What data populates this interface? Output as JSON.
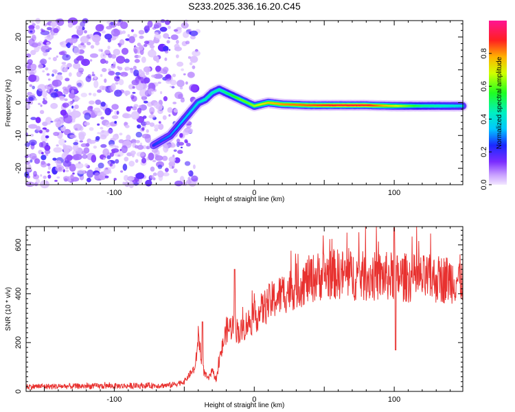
{
  "title": "S233.2025.336.16.20.C45",
  "chart_data": [
    {
      "type": "heatmap",
      "xlabel": "Height of straight line (km)",
      "ylabel": "Frequency (Hz)",
      "xlim": [
        -163,
        149
      ],
      "ylim": [
        -25,
        25
      ],
      "xticks": [
        -100,
        0,
        100
      ],
      "xtick_labels": [
        "-100",
        "0",
        "100"
      ],
      "yticks": [
        -20,
        -10,
        0,
        10,
        20
      ],
      "ytick_labels": [
        "-20",
        "-10",
        "0",
        "10",
        "20"
      ],
      "colorbar": {
        "label": "Normalized spectral amplitude",
        "range": [
          0,
          1
        ],
        "ticks": [
          0.0,
          0.2,
          0.4,
          0.6,
          0.8
        ],
        "tick_labels": [
          "0.0",
          "0.2",
          "0.4",
          "0.6",
          "0.8"
        ]
      },
      "ridge": {
        "x": [
          -72,
          -60,
          -50,
          -40,
          -35,
          -30,
          -25,
          -20,
          -15,
          -10,
          -5,
          0,
          5,
          10,
          20,
          40,
          60,
          80,
          90,
          100,
          120,
          149
        ],
        "y": [
          -13,
          -10,
          -5,
          0,
          1,
          3,
          4,
          3,
          2,
          1,
          0,
          -1,
          -0.5,
          0,
          -0.5,
          -0.8,
          -0.8,
          -0.8,
          -0.9,
          -1,
          -1,
          -1
        ],
        "amplitude": [
          0.25,
          0.3,
          0.35,
          0.4,
          0.45,
          0.45,
          0.45,
          0.5,
          0.55,
          0.6,
          0.6,
          0.65,
          0.7,
          0.75,
          0.8,
          0.85,
          0.9,
          0.9,
          0.8,
          0.7,
          0.5,
          0.4
        ]
      },
      "noise_region": {
        "x_from": -163,
        "x_to": -40
      }
    },
    {
      "type": "line",
      "xlabel": "Height of straight line (km)",
      "ylabel": "SNR (10 * v/v)",
      "xlim": [
        -163,
        149
      ],
      "ylim": [
        0,
        675
      ],
      "xticks": [
        -100,
        0,
        100
      ],
      "xtick_labels": [
        "-100",
        "0",
        "100"
      ],
      "yticks": [
        0,
        200,
        400,
        600
      ],
      "ytick_labels": [
        "0",
        "200",
        "400",
        "600"
      ],
      "color": "#e8312f",
      "envelope": {
        "x": [
          -163,
          -100,
          -60,
          -50,
          -42,
          -40,
          -38,
          -36,
          -33,
          -30,
          -27,
          -24,
          -20,
          -15,
          -10,
          -5,
          0,
          10,
          20,
          30,
          40,
          50,
          60,
          80,
          100,
          120,
          149
        ],
        "y": [
          20,
          22,
          25,
          40,
          100,
          230,
          150,
          80,
          50,
          80,
          50,
          150,
          250,
          270,
          240,
          280,
          300,
          360,
          400,
          430,
          460,
          480,
          480,
          470,
          470,
          460,
          460
        ]
      },
      "spikes": [
        {
          "x": -37,
          "y": 285
        },
        {
          "x": -14,
          "y": 500
        },
        {
          "x": 100,
          "y": 670
        },
        {
          "x": 101,
          "y": 170
        }
      ]
    }
  ]
}
